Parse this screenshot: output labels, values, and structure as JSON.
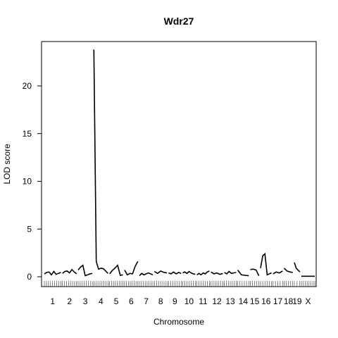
{
  "chart_data": {
    "type": "line",
    "title": "Wdr27",
    "xlabel": "Chromosome",
    "ylabel": "LOD score",
    "ylim": [
      -1,
      25.2
    ],
    "yticks": [
      0,
      5,
      10,
      15,
      20
    ],
    "grid": false,
    "legend": "none",
    "line_color": "#000000",
    "chromosomes": [
      {
        "name": "1",
        "start": 0.0,
        "end": 1.05,
        "lod": [
          0.3,
          0.45,
          0.5,
          0.2,
          0.55,
          0.25,
          0.35,
          0.45
        ]
      },
      {
        "name": "2",
        "start": 1.15,
        "end": 2.05,
        "lod": [
          0.35,
          0.55,
          0.6,
          0.4,
          0.75,
          0.5,
          0.3
        ]
      },
      {
        "name": "3",
        "start": 2.15,
        "end": 3.05,
        "lod": [
          0.7,
          1.0,
          1.2,
          0.1,
          0.2,
          0.3,
          0.35
        ]
      },
      {
        "name": "4",
        "start": 3.15,
        "end": 4.05,
        "lod": [
          23.8,
          1.6,
          0.8,
          0.9,
          0.85,
          0.6,
          0.35
        ]
      },
      {
        "name": "5",
        "start": 4.15,
        "end": 5.0,
        "lod": [
          0.3,
          0.65,
          0.9,
          1.2,
          0.15,
          0.2
        ]
      },
      {
        "name": "6",
        "start": 5.1,
        "end": 5.95,
        "lod": [
          0.7,
          0.2,
          0.35,
          0.3,
          1.1,
          1.6
        ]
      },
      {
        "name": "7",
        "start": 6.05,
        "end": 6.9,
        "lod": [
          0.1,
          0.35,
          0.2,
          0.3,
          0.4,
          0.3,
          0.2
        ]
      },
      {
        "name": "8",
        "start": 7.0,
        "end": 7.8,
        "lod": [
          0.55,
          0.35,
          0.6,
          0.45,
          0.4
        ]
      },
      {
        "name": "9",
        "start": 7.9,
        "end": 8.7,
        "lod": [
          0.4,
          0.3,
          0.5,
          0.3,
          0.45,
          0.35
        ]
      },
      {
        "name": "10",
        "start": 8.8,
        "end": 9.6,
        "lod": [
          0.4,
          0.5,
          0.35,
          0.55,
          0.4,
          0.3,
          0.25
        ]
      },
      {
        "name": "11",
        "start": 9.7,
        "end": 10.5,
        "lod": [
          0.2,
          0.35,
          0.2,
          0.4,
          0.3,
          0.5,
          0.6
        ]
      },
      {
        "name": "12",
        "start": 10.6,
        "end": 11.35,
        "lod": [
          0.5,
          0.3,
          0.4,
          0.25,
          0.35
        ]
      },
      {
        "name": "13",
        "start": 11.45,
        "end": 12.2,
        "lod": [
          0.45,
          0.3,
          0.55,
          0.35,
          0.4,
          0.45
        ]
      },
      {
        "name": "14",
        "start": 12.3,
        "end": 13.0,
        "lod": [
          0.7,
          0.2,
          0.15,
          0.1
        ]
      },
      {
        "name": "15",
        "start": 13.1,
        "end": 13.65,
        "lod": [
          0.75,
          0.8,
          0.7,
          0.1
        ]
      },
      {
        "name": "16",
        "start": 13.75,
        "end": 14.45,
        "lod": [
          0.9,
          2.2,
          2.4,
          0.2,
          0.3,
          0.4
        ]
      },
      {
        "name": "17",
        "start": 14.55,
        "end": 15.15,
        "lod": [
          0.3,
          0.5,
          0.4,
          0.6
        ]
      },
      {
        "name": "18",
        "start": 15.25,
        "end": 15.8,
        "lod": [
          0.9,
          0.6,
          0.5,
          0.45
        ]
      },
      {
        "name": "19",
        "start": 15.9,
        "end": 16.25,
        "lod": [
          1.5,
          0.9,
          0.7,
          0.5
        ]
      },
      {
        "name": "X",
        "start": 16.35,
        "end": 17.2,
        "lod": [
          0.05,
          0.05,
          0.05,
          0.05
        ]
      }
    ]
  }
}
